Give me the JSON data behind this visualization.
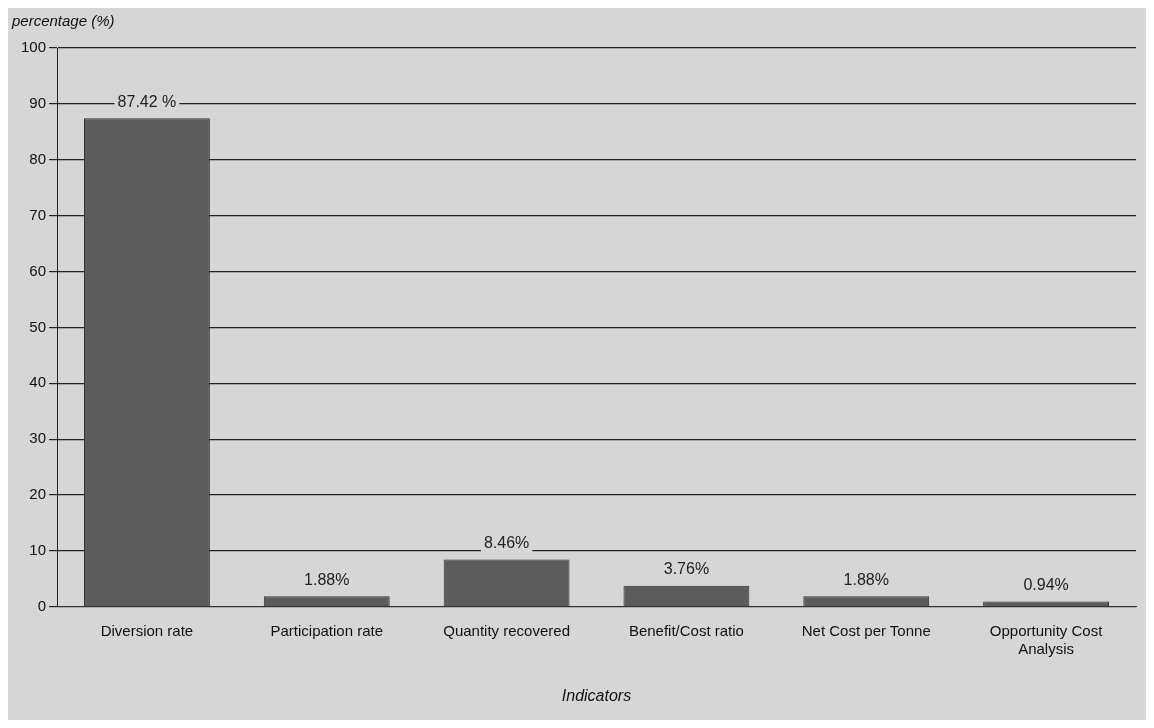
{
  "chart_data": {
    "type": "bar",
    "ylabel": "percentage (%)",
    "xlabel": "Indicators",
    "categories": [
      "Diversion rate",
      "Participation rate",
      "Quantity recovered",
      "Benefit/Cost ratio",
      "Net Cost per Tonne",
      "Opportunity Cost Analysis"
    ],
    "values": [
      87.42,
      1.88,
      8.46,
      3.76,
      1.88,
      0.94
    ],
    "value_labels": [
      "87.42 %",
      "1.88%",
      "8.46%",
      "3.76%",
      "1.88%",
      "0.94%"
    ],
    "color": "#5c5c5c",
    "ylim": [
      0,
      100
    ],
    "yticks": [
      0,
      10,
      20,
      30,
      40,
      50,
      60,
      70,
      80,
      90,
      100
    ],
    "grid": "y",
    "legend": false
  }
}
